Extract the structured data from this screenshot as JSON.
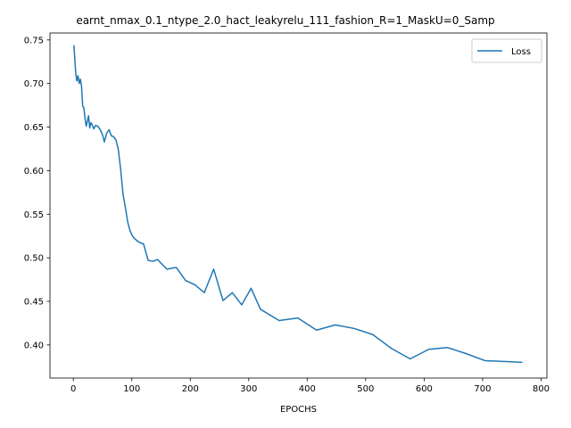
{
  "chart_data": {
    "type": "line",
    "title": "earnt_nmax_0.1_ntype_2.0_hact_leakyrelu_111_fashion_R=1_MaskU=0_Samp",
    "xlabel": "EPOCHS",
    "ylabel": "",
    "xlim": [
      -40,
      810
    ],
    "ylim": [
      0.362,
      0.758
    ],
    "xticks": [
      0,
      100,
      200,
      300,
      400,
      500,
      600,
      700,
      800
    ],
    "yticks": [
      0.4,
      0.45,
      0.5,
      0.55,
      0.6,
      0.65,
      0.7,
      0.75
    ],
    "xtick_labels": [
      "0",
      "100",
      "200",
      "300",
      "400",
      "500",
      "600",
      "700",
      "800"
    ],
    "ytick_labels": [
      "0.40",
      "0.45",
      "0.50",
      "0.55",
      "0.60",
      "0.65",
      "0.70",
      "0.75"
    ],
    "grid": false,
    "legend_position": "top-right",
    "series": [
      {
        "name": "Loss",
        "color": "#1f77b4",
        "x": [
          1,
          4,
          6,
          8,
          10,
          12,
          14,
          16,
          18,
          20,
          22,
          24,
          26,
          28,
          30,
          32,
          35,
          38,
          42,
          46,
          50,
          53,
          57,
          61,
          65,
          69,
          73,
          77,
          81,
          85,
          89,
          93,
          97,
          101,
          105,
          110,
          115,
          120,
          128,
          136,
          144,
          160,
          176,
          192,
          208,
          224,
          240,
          256,
          272,
          288,
          304,
          320,
          352,
          384,
          416,
          448,
          480,
          512,
          544,
          576,
          608,
          640,
          672,
          704,
          736,
          768
        ],
        "y": [
          0.744,
          0.712,
          0.703,
          0.709,
          0.7,
          0.705,
          0.697,
          0.674,
          0.672,
          0.66,
          0.651,
          0.657,
          0.663,
          0.649,
          0.655,
          0.653,
          0.648,
          0.652,
          0.651,
          0.647,
          0.641,
          0.633,
          0.643,
          0.647,
          0.64,
          0.639,
          0.635,
          0.624,
          0.601,
          0.573,
          0.558,
          0.541,
          0.531,
          0.525,
          0.522,
          0.519,
          0.517,
          0.516,
          0.497,
          0.496,
          0.498,
          0.487,
          0.489,
          0.474,
          0.469,
          0.46,
          0.487,
          0.451,
          0.46,
          0.446,
          0.465,
          0.441,
          0.428,
          0.431,
          0.417,
          0.423,
          0.419,
          0.412,
          0.396,
          0.384,
          0.395,
          0.397,
          0.39,
          0.382,
          0.381,
          0.38
        ]
      }
    ]
  }
}
